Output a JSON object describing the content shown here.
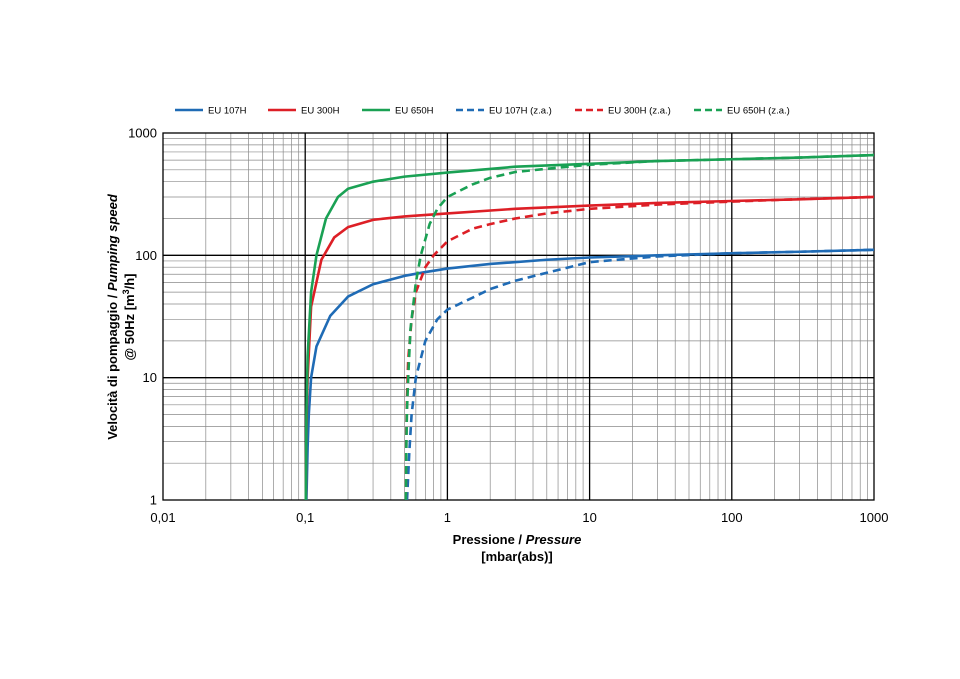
{
  "chart_data": {
    "type": "line",
    "x_scale": "log",
    "y_scale": "log",
    "xlim": [
      0.01,
      1000
    ],
    "ylim": [
      1,
      1000
    ],
    "x_ticks": [
      "0,01",
      "0,1",
      "1",
      "10",
      "100",
      "1000"
    ],
    "y_ticks": [
      "1",
      "10",
      "100",
      "1000"
    ],
    "xlabel": {
      "line1_plain": "Pressione / ",
      "line1_italic": "Pressure",
      "line2": "[mbar(abs)]"
    },
    "ylabel": {
      "line1_plain": "Velocità di pompaggio / ",
      "line1_italic": "Pumping speed",
      "line2_prefix": "@ 50Hz [m",
      "line2_sup": "3",
      "line2_suffix": "/h]"
    },
    "grid": true,
    "legend_position": "top",
    "series": [
      {
        "name": "EU 107H",
        "color": "#1f6bb5",
        "dashed": false,
        "points": [
          [
            0.102,
            1
          ],
          [
            0.104,
            2.7
          ],
          [
            0.106,
            5
          ],
          [
            0.11,
            10
          ],
          [
            0.12,
            18
          ],
          [
            0.15,
            32
          ],
          [
            0.2,
            46
          ],
          [
            0.3,
            58
          ],
          [
            0.5,
            68
          ],
          [
            0.7,
            73
          ],
          [
            1,
            78
          ],
          [
            2,
            85
          ],
          [
            5,
            92
          ],
          [
            10,
            96
          ],
          [
            30,
            100
          ],
          [
            100,
            104
          ],
          [
            300,
            107
          ],
          [
            1000,
            111
          ]
        ]
      },
      {
        "name": "EU 300H",
        "color": "#dd1f26",
        "dashed": false,
        "points": [
          [
            0.101,
            1
          ],
          [
            0.102,
            4
          ],
          [
            0.104,
            10
          ],
          [
            0.11,
            38
          ],
          [
            0.13,
            92
          ],
          [
            0.16,
            140
          ],
          [
            0.2,
            170
          ],
          [
            0.3,
            195
          ],
          [
            0.5,
            208
          ],
          [
            1,
            220
          ],
          [
            3,
            240
          ],
          [
            10,
            255
          ],
          [
            30,
            268
          ],
          [
            100,
            278
          ],
          [
            300,
            287
          ],
          [
            1000,
            300
          ]
        ]
      },
      {
        "name": "EU 650H",
        "color": "#1aa154",
        "dashed": false,
        "points": [
          [
            0.101,
            1
          ],
          [
            0.102,
            5
          ],
          [
            0.104,
            15
          ],
          [
            0.11,
            50
          ],
          [
            0.12,
            100
          ],
          [
            0.14,
            200
          ],
          [
            0.17,
            300
          ],
          [
            0.2,
            350
          ],
          [
            0.3,
            400
          ],
          [
            0.5,
            440
          ],
          [
            1,
            475
          ],
          [
            3,
            530
          ],
          [
            10,
            560
          ],
          [
            30,
            590
          ],
          [
            100,
            610
          ],
          [
            300,
            630
          ],
          [
            1000,
            660
          ]
        ]
      },
      {
        "name": "EU 107H (z.a.)",
        "color": "#1f6bb5",
        "dashed": true,
        "points": [
          [
            0.52,
            1
          ],
          [
            0.54,
            2.5
          ],
          [
            0.56,
            5
          ],
          [
            0.6,
            10
          ],
          [
            0.7,
            20
          ],
          [
            0.85,
            30
          ],
          [
            1,
            36
          ],
          [
            1.5,
            45
          ],
          [
            2,
            53
          ],
          [
            3,
            62
          ],
          [
            5,
            72
          ],
          [
            10,
            88
          ],
          [
            30,
            98
          ],
          [
            100,
            104
          ],
          [
            300,
            107
          ],
          [
            1000,
            111
          ]
        ]
      },
      {
        "name": "EU 300H (z.a.)",
        "color": "#dd1f26",
        "dashed": true,
        "points": [
          [
            0.51,
            1
          ],
          [
            0.515,
            4
          ],
          [
            0.52,
            7
          ],
          [
            0.53,
            14
          ],
          [
            0.56,
            30
          ],
          [
            0.6,
            50
          ],
          [
            0.7,
            80
          ],
          [
            0.8,
            100
          ],
          [
            1,
            130
          ],
          [
            1.5,
            165
          ],
          [
            2,
            180
          ],
          [
            3,
            200
          ],
          [
            5,
            220
          ],
          [
            10,
            240
          ],
          [
            30,
            260
          ],
          [
            100,
            275
          ],
          [
            300,
            288
          ],
          [
            1000,
            300
          ]
        ]
      },
      {
        "name": "EU 650H (z.a.)",
        "color": "#1aa154",
        "dashed": true,
        "points": [
          [
            0.51,
            1
          ],
          [
            0.515,
            3
          ],
          [
            0.52,
            5.5
          ],
          [
            0.53,
            10
          ],
          [
            0.55,
            25
          ],
          [
            0.6,
            60
          ],
          [
            0.65,
            100
          ],
          [
            0.75,
            180
          ],
          [
            0.85,
            240
          ],
          [
            1,
            300
          ],
          [
            1.5,
            380
          ],
          [
            2,
            430
          ],
          [
            3,
            480
          ],
          [
            5,
            510
          ],
          [
            10,
            550
          ],
          [
            30,
            590
          ],
          [
            100,
            610
          ],
          [
            300,
            630
          ],
          [
            1000,
            660
          ]
        ]
      }
    ]
  }
}
